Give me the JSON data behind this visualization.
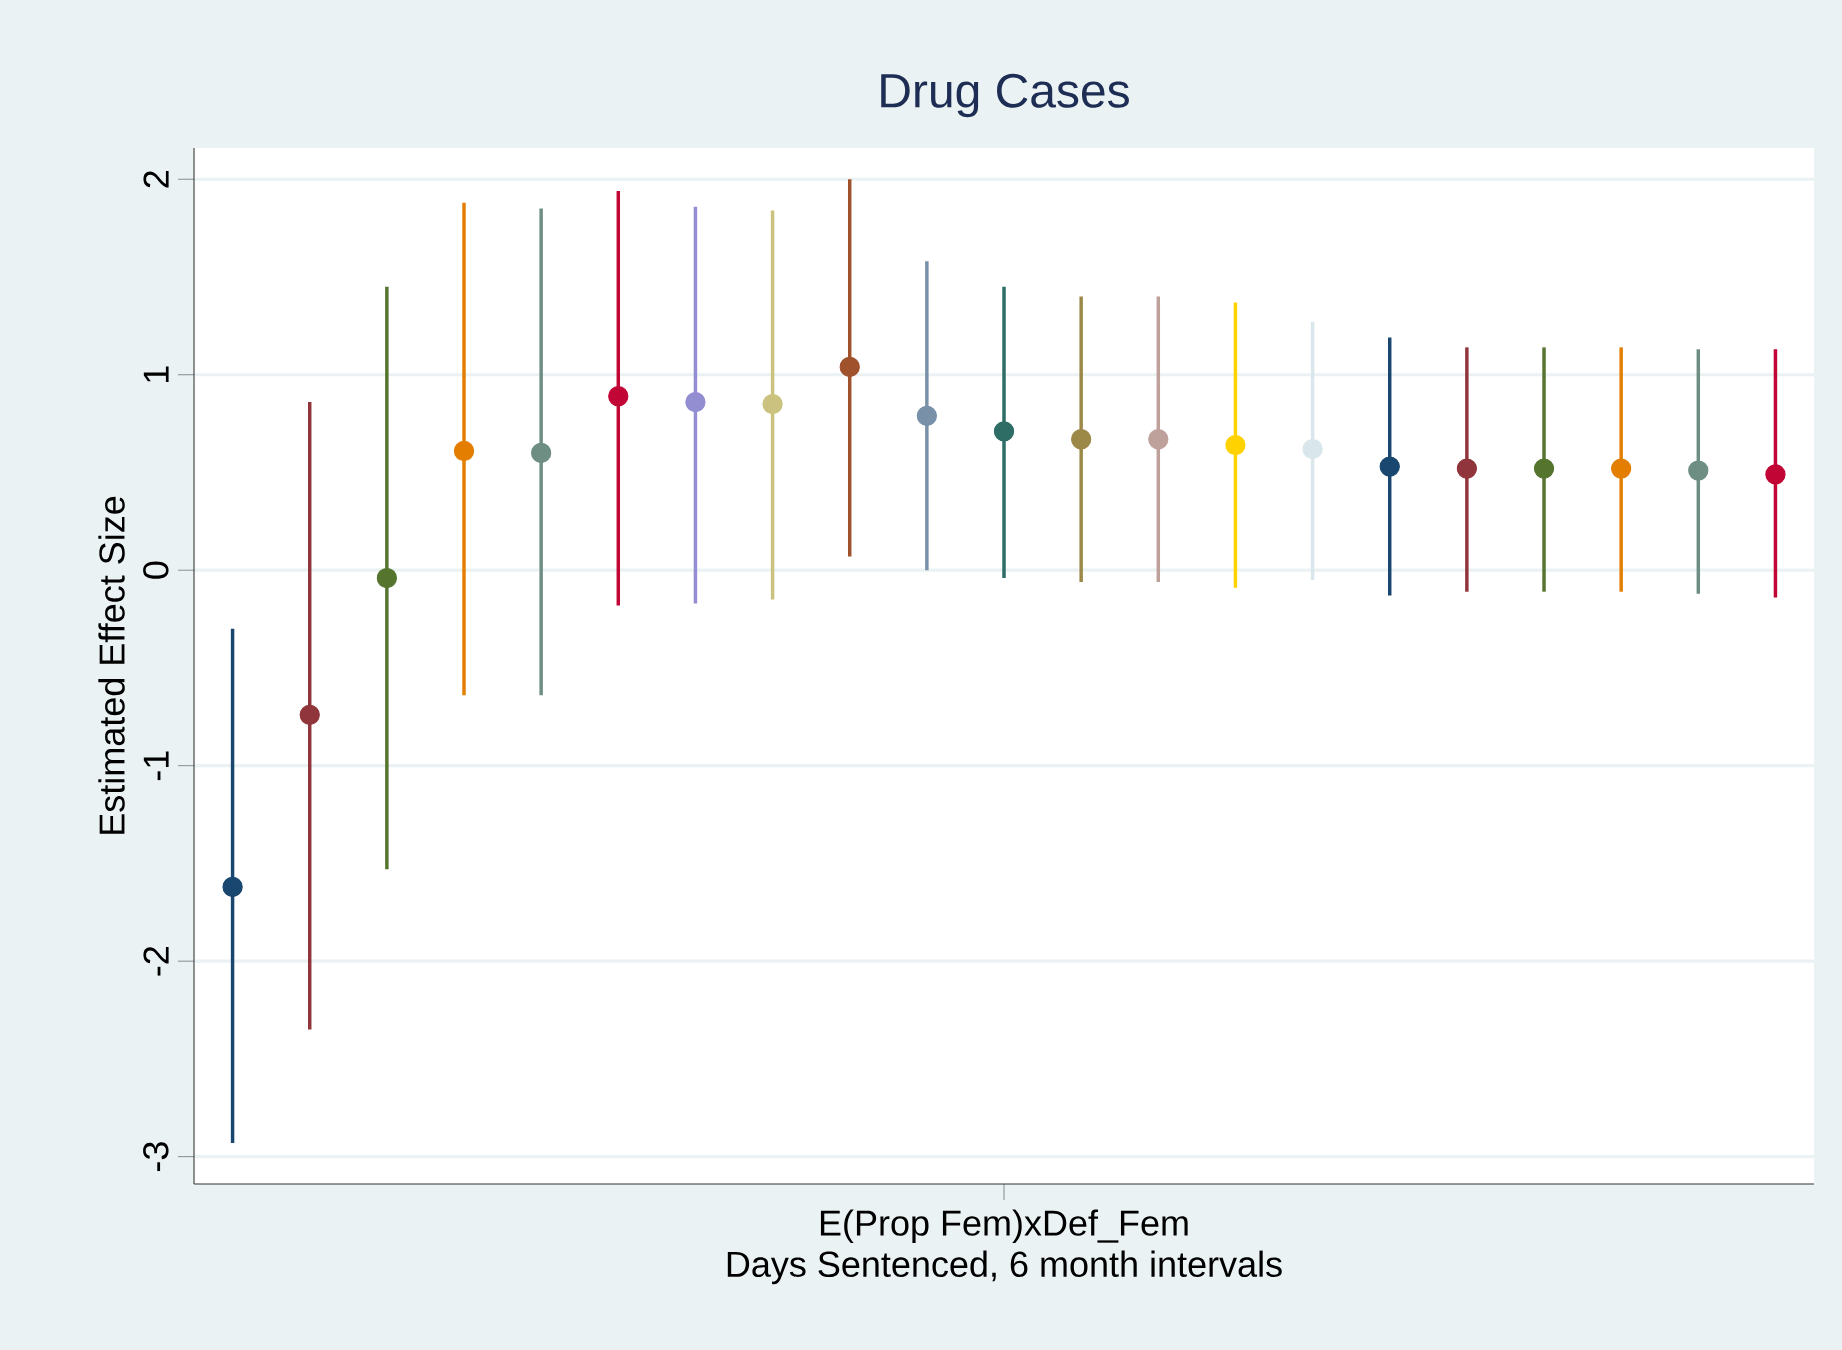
{
  "chart_data": {
    "type": "scatter",
    "title": "Drug Cases",
    "xlabel": "Days Sentenced, 6 month intervals",
    "ylabel": "Estimated Effect Size",
    "categories": [
      null,
      null,
      null,
      null,
      null,
      null,
      null,
      null,
      null,
      null,
      "E(Prop Fem)xDef_Fem",
      null,
      null,
      null,
      null,
      null,
      null,
      null,
      null,
      null,
      null
    ],
    "values": [
      -1.62,
      -0.74,
      -0.04,
      0.61,
      0.6,
      0.89,
      0.86,
      0.85,
      1.04,
      0.79,
      0.71,
      0.67,
      0.67,
      0.64,
      0.62,
      0.53,
      0.52,
      0.52,
      0.52,
      0.51,
      0.49
    ],
    "errors": [
      [
        -2.93,
        -0.3
      ],
      [
        -2.35,
        0.86
      ],
      [
        -1.53,
        1.45
      ],
      [
        -0.64,
        1.88
      ],
      [
        -0.64,
        1.85
      ],
      [
        -0.18,
        1.94
      ],
      [
        -0.17,
        1.86
      ],
      [
        -0.15,
        1.84
      ],
      [
        0.07,
        2.0
      ],
      [
        0,
        1.58
      ],
      [
        -0.04,
        1.45
      ],
      [
        -0.06,
        1.4
      ],
      [
        -0.06,
        1.4
      ],
      [
        -0.09,
        1.37
      ],
      [
        -0.05,
        1.27
      ],
      [
        -0.13,
        1.19
      ],
      [
        -0.11,
        1.14
      ],
      [
        -0.11,
        1.14
      ],
      [
        -0.11,
        1.14
      ],
      [
        -0.12,
        1.13
      ],
      [
        -0.14,
        1.13
      ]
    ],
    "colors": [
      "#1a476f",
      "#90353b",
      "#55752f",
      "#e37e00",
      "#6e8e84",
      "#c10534",
      "#938dd2",
      "#cac27e",
      "#a0522d",
      "#7890a8",
      "#2d6d66",
      "#9c8847",
      "#bfa19c",
      "#ffd200",
      "#d9e6eb",
      "#1a476f",
      "#90353b",
      "#55752f",
      "#e37e00",
      "#6e8e84",
      "#c10534"
    ],
    "ylim": [
      -3.14,
      2.16
    ],
    "yticks": [
      -3,
      -2,
      -1,
      0,
      1,
      2
    ],
    "grid": "y",
    "marker": "circle"
  }
}
